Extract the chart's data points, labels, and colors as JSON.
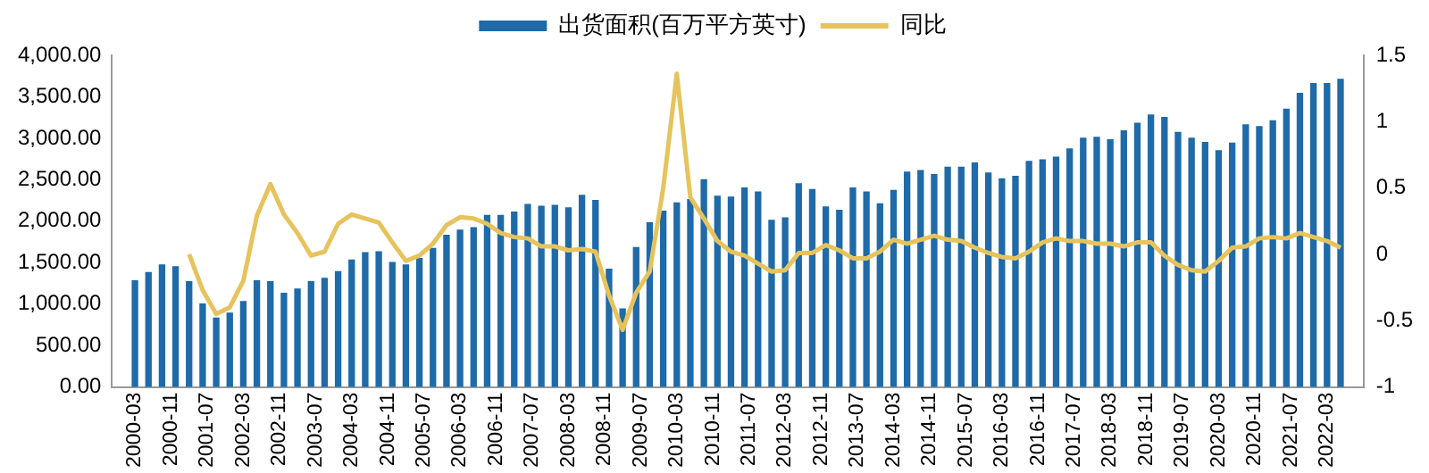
{
  "chart_data": {
    "type": "bar",
    "legend": "top",
    "x": [
      "2000-03",
      "2000-06",
      "2000-09",
      "2000-12",
      "2001-03",
      "2001-06",
      "2001-09",
      "2001-12",
      "2002-03",
      "2002-06",
      "2002-09",
      "2002-12",
      "2003-03",
      "2003-06",
      "2003-09",
      "2003-12",
      "2004-03",
      "2004-06",
      "2004-09",
      "2004-12",
      "2005-03",
      "2005-06",
      "2005-09",
      "2005-12",
      "2006-03",
      "2006-06",
      "2006-09",
      "2006-12",
      "2007-03",
      "2007-06",
      "2007-09",
      "2007-12",
      "2008-03",
      "2008-06",
      "2008-09",
      "2008-12",
      "2009-03",
      "2009-06",
      "2009-09",
      "2009-12",
      "2010-03",
      "2010-06",
      "2010-09",
      "2010-12",
      "2011-03",
      "2011-06",
      "2011-09",
      "2011-12",
      "2012-03",
      "2012-06",
      "2012-09",
      "2012-12",
      "2013-03",
      "2013-06",
      "2013-09",
      "2013-12",
      "2014-03",
      "2014-06",
      "2014-09",
      "2014-12",
      "2015-03",
      "2015-06",
      "2015-09",
      "2015-12",
      "2016-03",
      "2016-06",
      "2016-09",
      "2016-12",
      "2017-03",
      "2017-06",
      "2017-09",
      "2017-12",
      "2018-03",
      "2018-06",
      "2018-09",
      "2018-12",
      "2019-03",
      "2019-06",
      "2019-09",
      "2019-12",
      "2020-03",
      "2020-06",
      "2020-09",
      "2020-12",
      "2021-03",
      "2021-06",
      "2021-09",
      "2021-12",
      "2022-03",
      "2022-06"
    ],
    "series": [
      {
        "name": "出货面积(百万平方英寸)",
        "color": "#1f6aa8",
        "values": [
          1280,
          1380,
          1470,
          1450,
          1270,
          1000,
          830,
          890,
          1030,
          1280,
          1270,
          1130,
          1180,
          1270,
          1310,
          1390,
          1530,
          1620,
          1630,
          1500,
          1470,
          1550,
          1670,
          1830,
          1890,
          1920,
          2070,
          2070,
          2110,
          2200,
          2180,
          2190,
          2160,
          2310,
          2250,
          1420,
          940,
          1680,
          1980,
          2120,
          2220,
          2260,
          2500,
          2300,
          2290,
          2400,
          2350,
          2010,
          2040,
          2450,
          2380,
          2170,
          2130,
          2400,
          2350,
          2210,
          2370,
          2590,
          2610,
          2560,
          2650,
          2650,
          2700,
          2580,
          2510,
          2540,
          2720,
          2740,
          2770,
          2870,
          3000,
          3010,
          2980,
          3090,
          3180,
          3280,
          3250,
          3070,
          3000,
          2950,
          2850,
          2940,
          3160,
          3140,
          3210,
          3350,
          3540,
          3660,
          3660,
          3710
        ]
      },
      {
        "name": "同比",
        "type": "line",
        "axis": "y2",
        "color": "#e6c35c",
        "values": [
          null,
          null,
          null,
          null,
          0,
          -0.27,
          -0.45,
          -0.4,
          -0.2,
          0.29,
          0.53,
          0.3,
          0.16,
          -0.01,
          0.02,
          0.23,
          0.3,
          0.27,
          0.24,
          0.09,
          -0.05,
          -0.01,
          0.08,
          0.22,
          0.28,
          0.27,
          0.23,
          0.16,
          0.13,
          0.12,
          0.06,
          0.06,
          0.03,
          0.04,
          0.02,
          -0.31,
          -0.57,
          -0.29,
          -0.13,
          0.5,
          1.36,
          0.43,
          0.27,
          0.1,
          0.02,
          -0.01,
          -0.07,
          -0.13,
          -0.12,
          0.01,
          0.01,
          0.07,
          0.03,
          -0.03,
          -0.03,
          0.02,
          0.11,
          0.08,
          0.11,
          0.14,
          0.11,
          0.1,
          0.05,
          0.01,
          -0.02,
          -0.03,
          0.02,
          0.09,
          0.12,
          0.1,
          0.1,
          0.08,
          0.08,
          0.06,
          0.09,
          0.09,
          -0.01,
          -0.08,
          -0.12,
          -0.13,
          -0.05,
          0.05,
          0.06,
          0.12,
          0.13,
          0.12,
          0.16,
          0.13,
          0.1,
          0.05
        ]
      }
    ],
    "xlim": [
      "2000-02",
      "2022-07"
    ],
    "xticks": [
      "2000-03",
      "2000-11",
      "2001-07",
      "2002-03",
      "2002-11",
      "2003-07",
      "2004-03",
      "2004-11",
      "2005-07",
      "2006-03",
      "2006-11",
      "2007-07",
      "2008-03",
      "2008-11",
      "2009-07",
      "2010-03",
      "2010-11",
      "2011-07",
      "2012-03",
      "2012-11",
      "2013-07",
      "2014-03",
      "2014-11",
      "2015-07",
      "2016-03",
      "2016-11",
      "2017-07",
      "2018-03",
      "2018-11",
      "2019-07",
      "2020-03",
      "2020-11",
      "2021-07",
      "2022-03"
    ],
    "ylim": [
      0,
      4000
    ],
    "yticks": [
      {
        "value": 0,
        "label": "0.00"
      },
      {
        "value": 500,
        "label": "500.00"
      },
      {
        "value": 1000,
        "label": "1,000.00"
      },
      {
        "value": 1500,
        "label": "1,500.00"
      },
      {
        "value": 2000,
        "label": "2,000.00"
      },
      {
        "value": 2500,
        "label": "2,500.00"
      },
      {
        "value": 3000,
        "label": "3,000.00"
      },
      {
        "value": 3500,
        "label": "3,500.00"
      },
      {
        "value": 4000,
        "label": "4,000.00"
      }
    ],
    "y2lim": [
      -1,
      1.5
    ],
    "y2ticks": [
      -1,
      -0.5,
      0,
      0.5,
      1,
      1.5
    ],
    "grid": false
  }
}
